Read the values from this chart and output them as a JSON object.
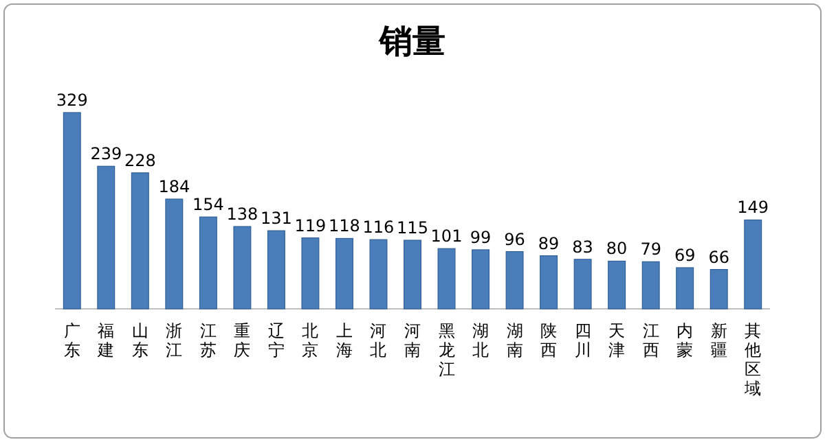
{
  "chart_data": {
    "type": "bar",
    "title": "销量",
    "categories": [
      "广东",
      "福建",
      "山东",
      "浙江",
      "江苏",
      "重庆",
      "辽宁",
      "北京",
      "上海",
      "河北",
      "河南",
      "黑龙江",
      "湖北",
      "湖南",
      "陕西",
      "四川",
      "天津",
      "江西",
      "内蒙",
      "新疆",
      "其他区域"
    ],
    "values": [
      329,
      239,
      228,
      184,
      154,
      138,
      131,
      119,
      118,
      116,
      115,
      101,
      99,
      96,
      89,
      83,
      80,
      79,
      69,
      66,
      149
    ],
    "color": "#4a7ebb",
    "data_labels": true
  }
}
